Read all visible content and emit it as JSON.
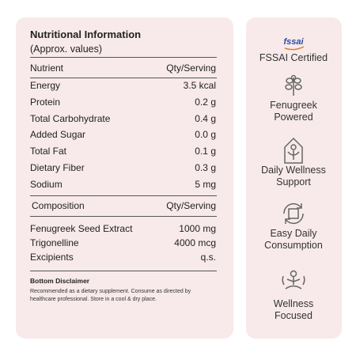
{
  "nutrition": {
    "title": "Nutritional Information",
    "subtitle": "(Approx. values)",
    "header": [
      "Nutrient",
      "Qty/Serving"
    ],
    "rows": [
      [
        "Energy",
        "3.5 kcal"
      ],
      [
        "Protein",
        "0.2 g"
      ],
      [
        "Total Carbohydrate",
        "0.4 g"
      ],
      [
        "Added Sugar",
        "0.0 g"
      ],
      [
        "Total Fat",
        "0.1 g"
      ],
      [
        "Dietary Fiber",
        "0.3 g"
      ],
      [
        "Sodium",
        "5 mg"
      ]
    ]
  },
  "composition": {
    "header": [
      "Composition",
      "Qty/Serving"
    ],
    "rows": [
      [
        "Fenugreek Seed Extract",
        "1000 mg"
      ],
      [
        "Trigonelline",
        "4000 mcg"
      ],
      [
        "Excipients",
        "q.s."
      ]
    ]
  },
  "disclaimer": {
    "title": "Bottom Disclaimer",
    "text": "Recommended as a dietary supplement. Consume as directed by healthcare professional. Store in a cool & dry place."
  },
  "features": [
    {
      "logo": "fssai",
      "label": "FSSAI Certified"
    },
    {
      "label": "Fenugreek Powered"
    },
    {
      "label": "Daily Wellness Support"
    },
    {
      "label": "Easy Daily Consumption"
    },
    {
      "label": "Wellness Focused"
    }
  ]
}
